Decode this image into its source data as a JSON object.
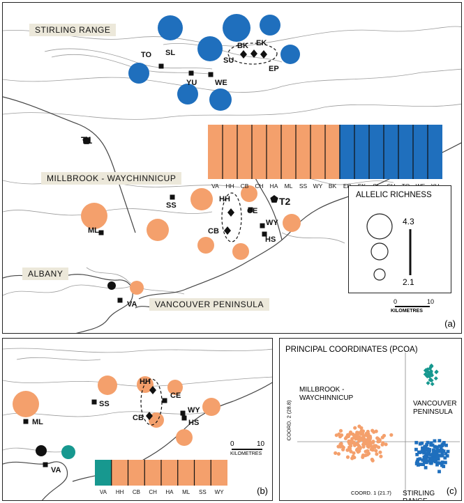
{
  "panel_a": {
    "regions": [
      "STIRLING RANGE",
      "MILLBROOK - WAYCHINNICUP",
      "ALBANY",
      "VANCOUVER PENINSULA"
    ],
    "site_labels": [
      "TO",
      "SL",
      "BK",
      "EK",
      "SU",
      "EP",
      "YU",
      "WE",
      "T1",
      "SS",
      "HH",
      "CE",
      "T2",
      "WY",
      "ML",
      "CB",
      "HS",
      "VA"
    ],
    "structure_labels": [
      "VA",
      "HH",
      "CB",
      "CH",
      "HA",
      "ML",
      "SS",
      "WY",
      "BK",
      "EP",
      "EK",
      "SL",
      "SU",
      "TO",
      "WE",
      "YU"
    ],
    "legend": {
      "title": "ALLELIC RICHNESS",
      "max": "4.3",
      "min": "2.1"
    },
    "scale": {
      "zero": "0",
      "ten": "10",
      "unit": "KILOMETRES"
    },
    "panel_letter": "(a)"
  },
  "panel_b": {
    "site_labels": [
      "SS",
      "HH",
      "CE",
      "WY",
      "ML",
      "CB",
      "HS",
      "VA"
    ],
    "structure_labels": [
      "VA",
      "HH",
      "CB",
      "CH",
      "HA",
      "ML",
      "SS",
      "WY"
    ],
    "scale": {
      "zero": "0",
      "ten": "10",
      "unit": "KILOMETRES"
    },
    "panel_letter": "(b)"
  },
  "panel_c": {
    "title": "PRINCIPAL COORDINATES (PCOA)",
    "group_labels": [
      "MILLBROOK -",
      "WAYCHINNICUP",
      "VANCOUVER",
      "PENINSULA",
      "STIRLING RANGE"
    ],
    "xlabel": "COORD. 1 (21.7)",
    "ylabel": "COORD. 2 (28.8)",
    "panel_letter": "(c)"
  },
  "colors": {
    "orange": "#f4a06c",
    "blue": "#1f6fbd",
    "teal": "#17988f",
    "map_line": "#9a9a9a"
  }
}
